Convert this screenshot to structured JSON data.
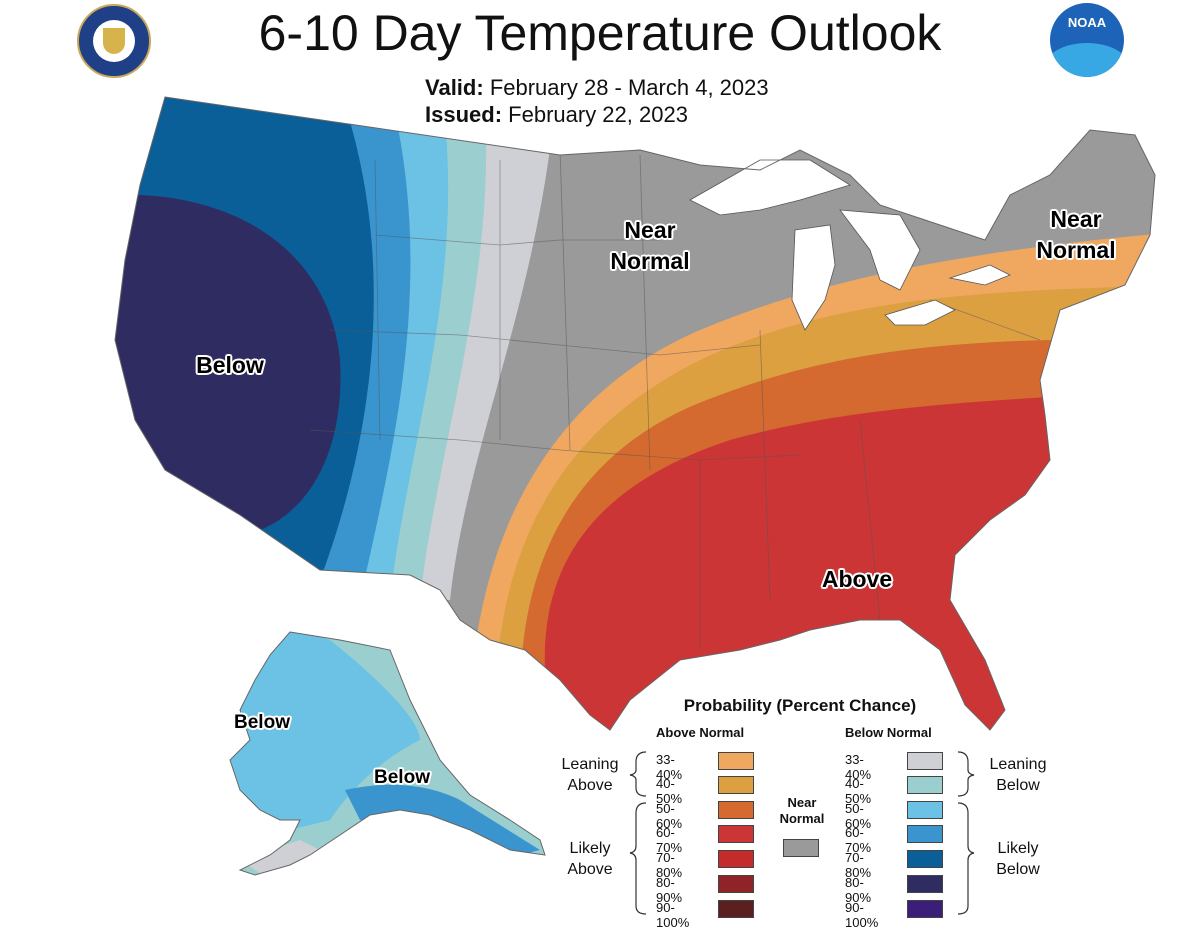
{
  "title": "6-10 Day Temperature Outlook",
  "valid_label": "Valid:",
  "valid_value": "February 28 - March 4, 2023",
  "issued_label": "Issued:",
  "issued_value": "February 22, 2023",
  "logos": {
    "left": "commerce-seal-icon",
    "right_text": "NOAA"
  },
  "map_labels": {
    "near_normal_1": "Near Normal",
    "near_normal_2": "Near Normal",
    "below_west": "Below",
    "above_southeast": "Above",
    "below_alaska_west": "Below",
    "below_alaska_south": "Below"
  },
  "legend": {
    "title": "Probability (Percent Chance)",
    "above_header": "Above Normal",
    "below_header": "Below Normal",
    "near_normal": "Near Normal",
    "near_normal_color": "#9a9a9a",
    "leaning_above": "Leaning Above",
    "likely_above": "Likely Above",
    "leaning_below": "Leaning Below",
    "likely_below": "Likely Below",
    "above": [
      {
        "range": "33-40%",
        "color": "#f0a860"
      },
      {
        "range": "40-50%",
        "color": "#dca040"
      },
      {
        "range": "50-60%",
        "color": "#d46a30"
      },
      {
        "range": "60-70%",
        "color": "#cc3535"
      },
      {
        "range": "70-80%",
        "color": "#c42c2c"
      },
      {
        "range": "80-90%",
        "color": "#8e2428"
      },
      {
        "range": "90-100%",
        "color": "#5a2020"
      }
    ],
    "below": [
      {
        "range": "33-40%",
        "color": "#cfcfd6"
      },
      {
        "range": "40-50%",
        "color": "#9bcfcf"
      },
      {
        "range": "50-60%",
        "color": "#6cc2e4"
      },
      {
        "range": "60-70%",
        "color": "#3a95cf"
      },
      {
        "range": "70-80%",
        "color": "#0b5f98"
      },
      {
        "range": "80-90%",
        "color": "#2f2c62"
      },
      {
        "range": "90-100%",
        "color": "#3a1e78"
      }
    ]
  }
}
